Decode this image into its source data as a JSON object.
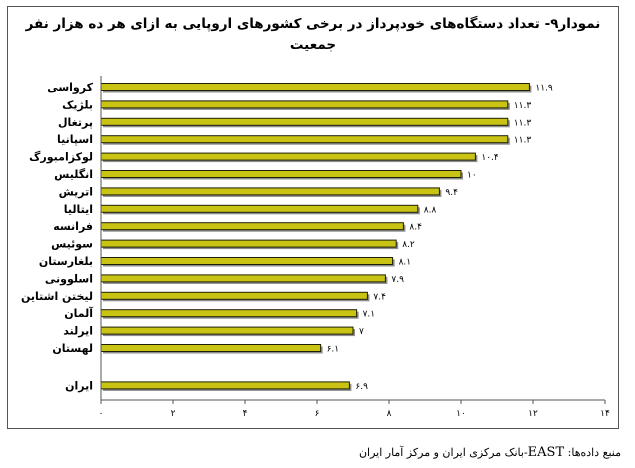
{
  "chart_data": {
    "type": "bar",
    "orientation": "horizontal",
    "title": "نمودار۹- تعداد دستگاه‌های خودپرداز در برخی کشورهای اروپایی به ازای هر ده هزار نفر جمعیت",
    "categories": [
      "کرواسی",
      "بلژیک",
      "پرتغال",
      "اسپانیا",
      "لوکزامبورگ",
      "انگلیس",
      "اتریش",
      "ایتالیا",
      "فرانسه",
      "سوئیس",
      "بلغارستان",
      "اسلوونی",
      "لیختن اشتاین",
      "آلمان",
      "ایرلند",
      "لهستان",
      "ایران"
    ],
    "values": [
      11.9,
      11.3,
      11.3,
      11.3,
      10.4,
      10,
      9.4,
      8.8,
      8.4,
      8.2,
      8.1,
      7.9,
      7.4,
      7.1,
      7,
      6.1,
      6.9
    ],
    "value_labels": [
      "۱۱.۹",
      "۱۱.۳",
      "۱۱.۳",
      "۱۱.۳",
      "۱۰.۴",
      "۱۰",
      "۹.۴",
      "۸.۸",
      "۸.۴",
      "۸.۲",
      "۸.۱",
      "۷.۹",
      "۷.۴",
      "۷.۱",
      "۷",
      "۶.۱",
      "۶.۹"
    ],
    "x_ticks": [
      0,
      2,
      4,
      6,
      8,
      10,
      12,
      14
    ],
    "x_tick_labels": [
      "۰",
      "۲",
      "۴",
      "۶",
      "۸",
      "۱۰",
      "۱۲",
      "۱۴"
    ],
    "xlim": [
      0,
      14
    ],
    "xlabel": "",
    "ylabel": "",
    "grid": false,
    "legend": "none",
    "gap_before_last_category": true,
    "colors": {
      "bar_fill": "#C9C314",
      "bar_edge": "#1E1E05",
      "bar_shadow": "#8C8C8C",
      "axis": "#555555"
    }
  },
  "footer": {
    "source_prefix": "منبع داده‌ها: ",
    "source_latin": "EAST",
    "source_rest": "-بانک مرکزی ایران و مرکز آمار ایران"
  }
}
